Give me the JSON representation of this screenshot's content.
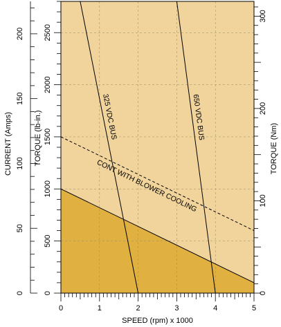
{
  "chart_data": {
    "type": "line",
    "title": "",
    "xlabel": "SPEED (rpm) x 1000",
    "xlim": [
      0,
      5
    ],
    "x_ticks": [
      "0",
      "1",
      "2",
      "3",
      "4",
      "5"
    ],
    "axes": {
      "current": {
        "label": "CURRENT (Amps)",
        "lim": [
          0,
          225
        ],
        "ticks": [
          "0",
          "50",
          "100",
          "150",
          "200"
        ]
      },
      "torque_lbin": {
        "label": "TORQUE (lb-in.)",
        "lim": [
          0,
          2800
        ],
        "ticks": [
          "0",
          "500",
          "1000",
          "1500",
          "2000",
          "2500"
        ]
      },
      "torque_nm": {
        "label": "TORQUE (Nm)",
        "lim": [
          0,
          316
        ],
        "ticks": [
          "0",
          "100",
          "200",
          "300"
        ]
      }
    },
    "grid": true,
    "regions": [
      {
        "name": "continuous",
        "polygon": [
          [
            0,
            1000
          ],
          [
            5,
            100
          ],
          [
            5,
            0
          ],
          [
            0,
            0
          ]
        ],
        "color": "#e0b040"
      },
      {
        "name": "intermittent",
        "polygon": [
          [
            0,
            2800
          ],
          [
            5,
            2800
          ],
          [
            5,
            100
          ],
          [
            0,
            1000
          ]
        ],
        "color": "#f0d49c"
      }
    ],
    "series": [
      {
        "name": "325 VDC BUS",
        "x": [
          0.5,
          2.0
        ],
        "y": [
          2800,
          0
        ]
      },
      {
        "name": "650 VDC BUS",
        "x": [
          3.0,
          4.0
        ],
        "y": [
          2800,
          0
        ]
      },
      {
        "name": "CONT WITH BLOWER COOLING",
        "x": [
          0,
          5
        ],
        "y": [
          1500,
          600
        ],
        "style": "dashed"
      }
    ],
    "boundary_line": {
      "x": [
        0,
        5
      ],
      "y": [
        1000,
        100
      ]
    }
  }
}
